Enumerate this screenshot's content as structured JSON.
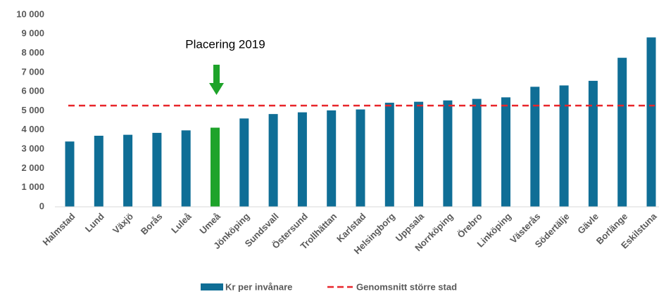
{
  "chart_data": {
    "type": "bar",
    "categories": [
      "Halmstad",
      "Lund",
      "Växjö",
      "Borås",
      "Luleå",
      "Umeå",
      "Jönköping",
      "Sundsvall",
      "Östersund",
      "Trollhättan",
      "Karlstad",
      "Helsingborg",
      "Uppsala",
      "Norrköping",
      "Örebro",
      "Linköping",
      "Västerås",
      "Södertälje",
      "Gävle",
      "Borlänge",
      "Eskilstuna"
    ],
    "series": [
      {
        "name": "Kr per invånare",
        "color": "#0f6e96",
        "colors": [
          "#0f6e96",
          "#0f6e96",
          "#0f6e96",
          "#0f6e96",
          "#0f6e96",
          "#1ea32a",
          "#0f6e96",
          "#0f6e96",
          "#0f6e96",
          "#0f6e96",
          "#0f6e96",
          "#0f6e96",
          "#0f6e96",
          "#0f6e96",
          "#0f6e96",
          "#0f6e96",
          "#0f6e96",
          "#0f6e96",
          "#0f6e96",
          "#0f6e96",
          "#0f6e96"
        ],
        "values": [
          3400,
          3700,
          3750,
          3850,
          3980,
          4120,
          4600,
          4830,
          4920,
          5020,
          5070,
          5420,
          5470,
          5540,
          5620,
          5700,
          6250,
          6320,
          6560,
          7760,
          8820
        ]
      }
    ],
    "reference_line": {
      "name": "Genomsnitt större stad",
      "value": 5270,
      "color": "#e8262b"
    },
    "annotation": "Placering 2019",
    "ylim": [
      0,
      10000
    ],
    "yticks": [
      0,
      {
        "value": 1000,
        "label": "1 000"
      },
      {
        "value": 2000,
        "label": "2 000"
      },
      {
        "value": 3000,
        "label": "3 000"
      },
      {
        "value": 4000,
        "label": "4 000"
      },
      {
        "value": 5000,
        "label": "5 000"
      },
      {
        "value": 6000,
        "label": "6 000"
      },
      {
        "value": 7000,
        "label": "7 000"
      },
      {
        "value": 8000,
        "label": "8 000"
      },
      {
        "value": 9000,
        "label": "9 000"
      },
      {
        "value": 10000,
        "label": "10 000"
      }
    ],
    "grid": false
  }
}
